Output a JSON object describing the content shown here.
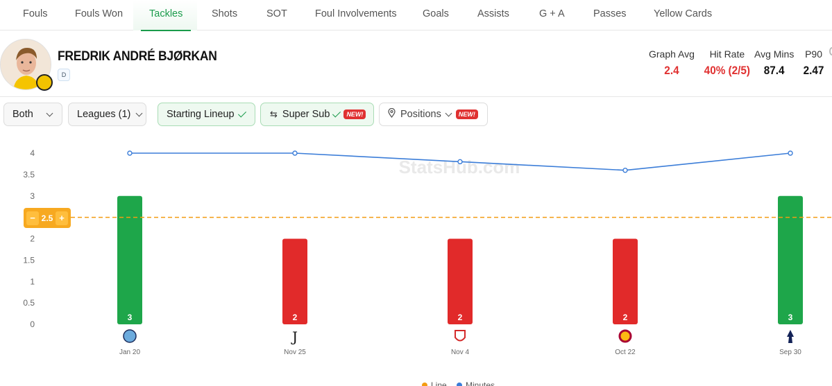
{
  "tabs": [
    "Fouls",
    "Fouls Won",
    "Tackles",
    "Shots",
    "SOT",
    "Foul Involvements",
    "Goals",
    "Assists",
    "G + A",
    "Passes",
    "Yellow Cards"
  ],
  "active_tab": "Tackles",
  "player": {
    "name": "FREDRIK ANDRÉ BJØRKAN",
    "position": "D"
  },
  "stats": {
    "graph_avg": {
      "label": "Graph Avg",
      "value": "2.4"
    },
    "hit_rate": {
      "label": "Hit Rate",
      "value": "40% (2/5)"
    },
    "avg_mins": {
      "label": "Avg Mins",
      "value": "87.4"
    },
    "p90": {
      "label": "P90",
      "value": "2.47"
    }
  },
  "filters": {
    "venue": "Both",
    "leagues": "Leagues (1)",
    "starting_lineup": "Starting Lineup",
    "super_sub": "Super Sub",
    "positions": "Positions",
    "new_badge": "NEW!"
  },
  "watermark": "StatsHub.com",
  "line_control": {
    "value": "2.5",
    "minus": "−",
    "plus": "+"
  },
  "colors": {
    "accent_green": "#1a9b4b",
    "bar_hit": "#1ea64a",
    "bar_miss": "#e12a2a",
    "minutes_line": "#3b7dd8",
    "threshold_line": "#f39c12",
    "stat_red": "#e03131"
  },
  "legend": [
    "Line",
    "Minutes"
  ],
  "chart_data": {
    "type": "bar",
    "categories": [
      "Jan 20",
      "Nov 25",
      "Nov 4",
      "Oct 22",
      "Sep 30"
    ],
    "opponent_icons": [
      "man-city-crest-icon",
      "juventus-crest-icon",
      "monaco-crest-icon",
      "galatasaray-crest-icon",
      "tottenham-crest-icon"
    ],
    "series": [
      {
        "name": "Tackles",
        "values": [
          3,
          2,
          2,
          2,
          3
        ]
      }
    ],
    "minutes_scaled": [
      4.0,
      4.0,
      3.8,
      3.6,
      4.0
    ],
    "threshold": 2.5,
    "ylim": [
      0,
      4
    ],
    "yticks": [
      "0",
      "0.5",
      "1",
      "1.5",
      "2",
      "2.5",
      "3",
      "3.5",
      "4"
    ],
    "grid": false
  }
}
